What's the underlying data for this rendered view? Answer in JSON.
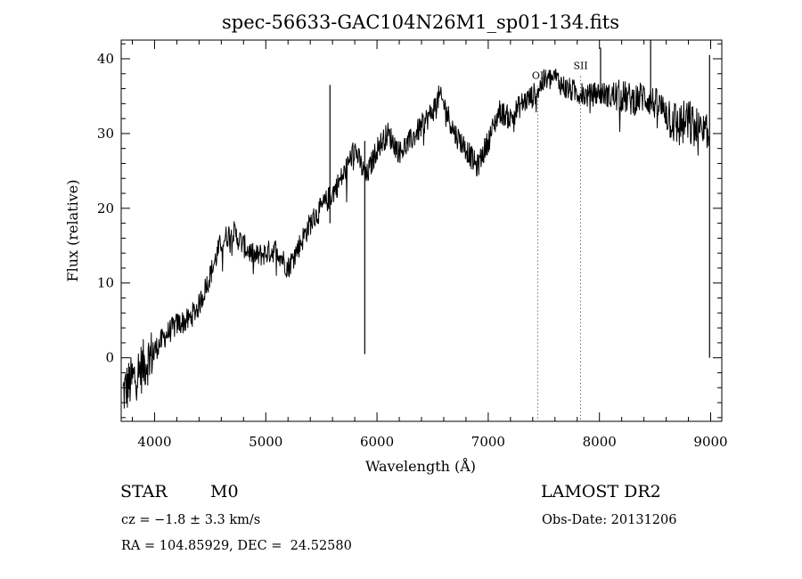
{
  "chart_data": {
    "type": "line",
    "title": "spec-56633-GAC104N26M1_sp01-134.fits",
    "xlabel": "Wavelength (Å)",
    "ylabel": "Flux (relative)",
    "xlim": [
      3700,
      9100
    ],
    "ylim": [
      -8.5,
      42.5
    ],
    "x_ticks": [
      4000,
      5000,
      6000,
      7000,
      8000,
      9000
    ],
    "y_ticks": [
      0,
      10,
      20,
      30,
      40
    ],
    "grid": false,
    "series": [
      {
        "x": [
          3700,
          3800,
          3900,
          4000,
          4100,
          4200,
          4300,
          4400,
          4500,
          4600,
          4700,
          4800,
          4900,
          5000,
          5100,
          5200,
          5300,
          5400,
          5500,
          5600,
          5700,
          5800,
          5900,
          6000,
          6100,
          6200,
          6300,
          6400,
          6500,
          6560,
          6600,
          6700,
          6800,
          6900,
          7000,
          7100,
          7200,
          7300,
          7400,
          7500,
          7600,
          7700,
          7800,
          7900,
          8000,
          8100,
          8200,
          8300,
          8400,
          8500,
          8600,
          8700,
          8800,
          8900,
          9000
        ],
        "y": [
          -5,
          -3,
          -1,
          1,
          3,
          4.5,
          5,
          7,
          11,
          15.5,
          17,
          15,
          13.5,
          14,
          14.5,
          12,
          15,
          18,
          20,
          22,
          24.5,
          28,
          24,
          28,
          30,
          27.5,
          29,
          31,
          33,
          35,
          34,
          30,
          28,
          25.5,
          29,
          33,
          32,
          34,
          35,
          37,
          37.5,
          36,
          35.5,
          35,
          35.5,
          35,
          35,
          34.5,
          35,
          34,
          33,
          31,
          31.5,
          30,
          29
        ]
      }
    ],
    "spikes": [
      {
        "x": 5577,
        "top": 36.5,
        "bottom": 18
      },
      {
        "x": 5890,
        "top": 29,
        "bottom": 0.5
      },
      {
        "x": 8010,
        "top": 41.5,
        "bottom": 34
      },
      {
        "x": 8460,
        "top": 42.5,
        "bottom": 34
      },
      {
        "x": 8990,
        "top": 40.5,
        "bottom": 0
      }
    ],
    "line_markers": [
      {
        "label": "OI",
        "x": 7446,
        "label_y": 37.3
      },
      {
        "label": "SII",
        "x": 7831,
        "label_y": 38.6
      }
    ]
  },
  "info": {
    "class_label": "STAR",
    "subclass": "M0",
    "cz": "cz = −1.8 ± 3.3 km/s",
    "coords": "RA = 104.85929, DEC =  24.52580",
    "survey": "LAMOST DR2",
    "obs_date": "Obs-Date: 20131206"
  }
}
